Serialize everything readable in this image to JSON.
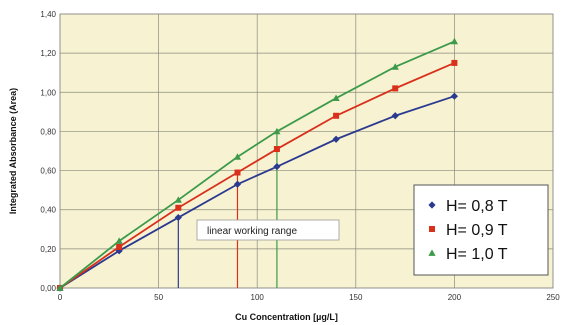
{
  "chart_data": {
    "type": "line",
    "xlabel": "Cu Concentration [µg/L]",
    "ylabel": "Integrated Absorbance (Area)",
    "xlim": [
      0,
      250
    ],
    "ylim": [
      0,
      1.4
    ],
    "x_ticks": [
      "0",
      "50",
      "100",
      "150",
      "200",
      "250"
    ],
    "y_ticks": [
      "0,00",
      "0,20",
      "0,40",
      "0,60",
      "0,80",
      "1,00",
      "1,20",
      "1,40"
    ],
    "grid": true,
    "legend_position": "bottom-right",
    "series": [
      {
        "name": "H= 0,8 T",
        "color": "#2b3a8f",
        "marker": "diamond",
        "x": [
          0,
          30,
          60,
          90,
          110,
          140,
          170,
          200
        ],
        "y": [
          0.0,
          0.19,
          0.36,
          0.53,
          0.62,
          0.76,
          0.88,
          0.98
        ]
      },
      {
        "name": "H= 0,9 T",
        "color": "#d9301c",
        "marker": "square",
        "x": [
          0,
          30,
          60,
          90,
          110,
          140,
          170,
          200
        ],
        "y": [
          0.0,
          0.21,
          0.41,
          0.59,
          0.71,
          0.88,
          1.02,
          1.15
        ]
      },
      {
        "name": "H= 1,0 T",
        "color": "#3c9a4a",
        "marker": "triangle",
        "x": [
          0,
          30,
          60,
          90,
          110,
          140,
          170,
          200
        ],
        "y": [
          0.0,
          0.24,
          0.45,
          0.67,
          0.8,
          0.97,
          1.13,
          1.26
        ]
      }
    ],
    "annotation": {
      "text": "linear working range",
      "blue_line_x": 60,
      "red_line_x": 90,
      "green_line_x": 110
    }
  }
}
